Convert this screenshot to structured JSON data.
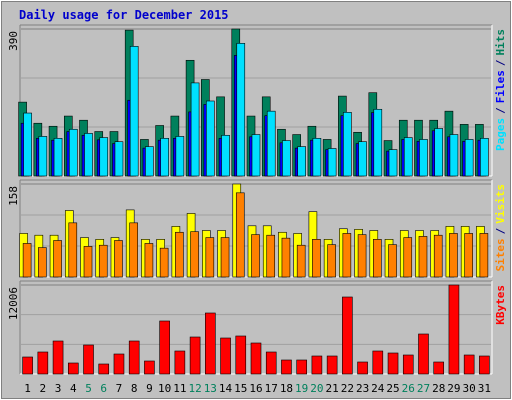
{
  "chart_data": [
    {
      "type": "bar",
      "title": "Daily usage for December 2015",
      "legend_separator": "/",
      "ylim": [
        0,
        390
      ],
      "yticks": [
        390
      ],
      "series": [
        {
          "name": "Hits",
          "color": "#00805c",
          "values": [
            196,
            140,
            132,
            159,
            148,
            118,
            118,
            387,
            97,
            134,
            159,
            307,
            256,
            210,
            390,
            159,
            210,
            124,
            110,
            132,
            97,
            212,
            116,
            221,
            94,
            148,
            148,
            148,
            172,
            137,
            137
          ]
        },
        {
          "name": "Files",
          "color": "#0000ff",
          "values": [
            140,
            100,
            95,
            118,
            108,
            96,
            86,
            201,
            74,
            95,
            100,
            170,
            190,
            100,
            320,
            104,
            160,
            88,
            74,
            95,
            70,
            160,
            86,
            168,
            66,
            97,
            92,
            120,
            104,
            92,
            95
          ]
        },
        {
          "name": "Pages",
          "color": "#00e0ff",
          "values": [
            167,
            105,
            100,
            124,
            113,
            102,
            91,
            344,
            78,
            100,
            105,
            247,
            199,
            108,
            352,
            110,
            172,
            94,
            78,
            100,
            73,
            169,
            91,
            177,
            70,
            102,
            97,
            126,
            110,
            97,
            100
          ]
        }
      ]
    },
    {
      "type": "bar",
      "legend_separator": "/",
      "ylim": [
        0,
        158
      ],
      "yticks": [
        158
      ],
      "series": [
        {
          "name": "Visits",
          "color": "#ffff00",
          "values": [
            74,
            71,
            71,
            113,
            67,
            64,
            67,
            114,
            64,
            64,
            86,
            108,
            79,
            79,
            158,
            87,
            87,
            76,
            74,
            111,
            64,
            82,
            81,
            79,
            64,
            79,
            79,
            79,
            86,
            86,
            86
          ]
        },
        {
          "name": "Sites",
          "color": "#ff8000",
          "values": [
            57,
            50,
            62,
            92,
            52,
            54,
            62,
            92,
            57,
            49,
            76,
            77,
            67,
            67,
            143,
            72,
            71,
            66,
            54,
            64,
            55,
            74,
            72,
            64,
            55,
            67,
            69,
            71,
            74,
            74,
            74
          ]
        }
      ]
    },
    {
      "type": "bar",
      "ylim": [
        0,
        12006
      ],
      "yticks": [
        12006
      ],
      "categories": [
        "1",
        "2",
        "3",
        "4",
        "5",
        "6",
        "7",
        "8",
        "9",
        "10",
        "11",
        "12",
        "13",
        "14",
        "15",
        "16",
        "17",
        "18",
        "19",
        "20",
        "21",
        "22",
        "23",
        "24",
        "25",
        "26",
        "27",
        "28",
        "29",
        "30",
        "31"
      ],
      "category_colors": [
        "#000000",
        "#000000",
        "#000000",
        "#000000",
        "#00805c",
        "#00805c",
        "#000000",
        "#000000",
        "#000000",
        "#000000",
        "#000000",
        "#00805c",
        "#00805c",
        "#000000",
        "#000000",
        "#000000",
        "#000000",
        "#000000",
        "#00805c",
        "#00805c",
        "#000000",
        "#000000",
        "#000000",
        "#000000",
        "#000000",
        "#00805c",
        "#00805c",
        "#000000",
        "#000000",
        "#000000",
        "#000000"
      ],
      "series": [
        {
          "name": "KBytes",
          "color": "#ff0000",
          "values": [
            2293,
            2968,
            4452,
            1484,
            3912,
            1349,
            2698,
            4452,
            1754,
            7150,
            3103,
            4991,
            8229,
            4856,
            5126,
            4182,
            2968,
            1889,
            1889,
            2428,
            2428,
            10387,
            1619,
            3103,
            2833,
            2563,
            5396,
            1619,
            12006,
            2563,
            2428
          ]
        }
      ]
    }
  ]
}
